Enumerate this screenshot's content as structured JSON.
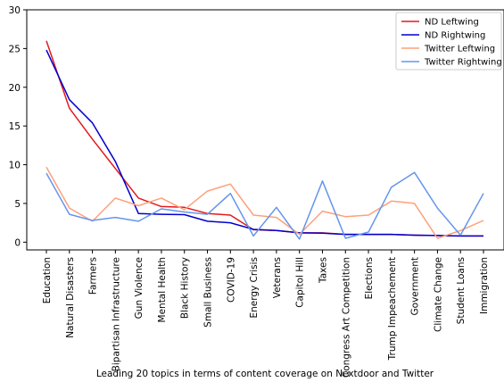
{
  "chart_data": {
    "type": "line",
    "xlabel": "Leading 20 topics in terms of content coverage on Nextdoor and Twitter",
    "ylabel": "",
    "ylim": [
      -1,
      30
    ],
    "yticks": [
      0,
      5,
      10,
      15,
      20,
      25,
      30
    ],
    "legend_position": "top-right",
    "grid": false,
    "categories": [
      "Education",
      "Natural Disasters",
      "Farmers",
      "Bipartisan Infrastructure",
      "Gun Violence",
      "Mental Health",
      "Black History",
      "Small Business",
      "COVID-19",
      "Energy Crisis",
      "Veterans",
      "Capitol Hill",
      "Taxes",
      "Congress Art Competition",
      "Elections",
      "Trump Impeachement",
      "Government",
      "Climate Change",
      "Student Loans",
      "Immigration"
    ],
    "series": [
      {
        "name": "ND Leftwing",
        "color": "#e41a1c",
        "values": [
          26.0,
          17.3,
          13.3,
          9.5,
          5.7,
          4.6,
          4.5,
          3.7,
          3.5,
          1.6,
          1.5,
          1.2,
          1.2,
          1.0,
          1.0,
          1.0,
          0.9,
          0.85,
          0.8,
          0.8
        ]
      },
      {
        "name": "ND Rightwing",
        "color": "#0000cd",
        "values": [
          24.8,
          18.4,
          15.4,
          10.4,
          3.7,
          3.6,
          3.55,
          2.7,
          2.5,
          1.65,
          1.5,
          1.2,
          1.15,
          1.0,
          1.0,
          1.0,
          0.9,
          0.85,
          0.8,
          0.8
        ]
      },
      {
        "name": "Twitter Leftwing",
        "color": "#ffa07a",
        "values": [
          9.7,
          4.4,
          2.7,
          5.7,
          4.7,
          5.7,
          4.2,
          6.6,
          7.5,
          3.5,
          3.2,
          1.0,
          4.0,
          3.3,
          3.5,
          5.3,
          5.0,
          0.5,
          1.5,
          2.8
        ]
      },
      {
        "name": "Twitter Rightwing",
        "color": "#6495ed",
        "values": [
          8.9,
          3.6,
          2.8,
          3.2,
          2.7,
          4.3,
          3.9,
          3.6,
          6.3,
          0.8,
          4.5,
          0.4,
          7.9,
          0.5,
          1.3,
          7.1,
          9.0,
          4.4,
          0.9,
          6.3
        ]
      }
    ]
  }
}
